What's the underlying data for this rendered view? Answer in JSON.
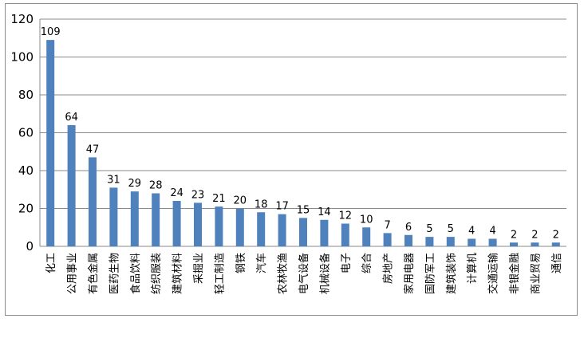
{
  "chart_data": {
    "type": "bar",
    "categories": [
      "化工",
      "公用事业",
      "有色金属",
      "医药生物",
      "食品饮料",
      "纺织服装",
      "建筑材料",
      "采掘业",
      "轻工制造",
      "钢铁",
      "汽车",
      "农林牧渔",
      "电气设备",
      "机械设备",
      "电子",
      "综合",
      "房地产",
      "家用电器",
      "国防军工",
      "建筑装饰",
      "计算机",
      "交通运输",
      "非银金融",
      "商业贸易",
      "通信"
    ],
    "values": [
      109,
      64,
      47,
      31,
      29,
      28,
      24,
      23,
      21,
      20,
      18,
      17,
      15,
      14,
      12,
      10,
      7,
      6,
      5,
      5,
      4,
      4,
      2,
      2,
      2
    ],
    "ylim": [
      0,
      120
    ],
    "yticks": [
      0,
      20,
      40,
      60,
      80,
      100,
      120
    ],
    "grid": true,
    "legend": "none",
    "bar_color": "#4f81bd",
    "title": "",
    "xlabel": "",
    "ylabel": ""
  }
}
